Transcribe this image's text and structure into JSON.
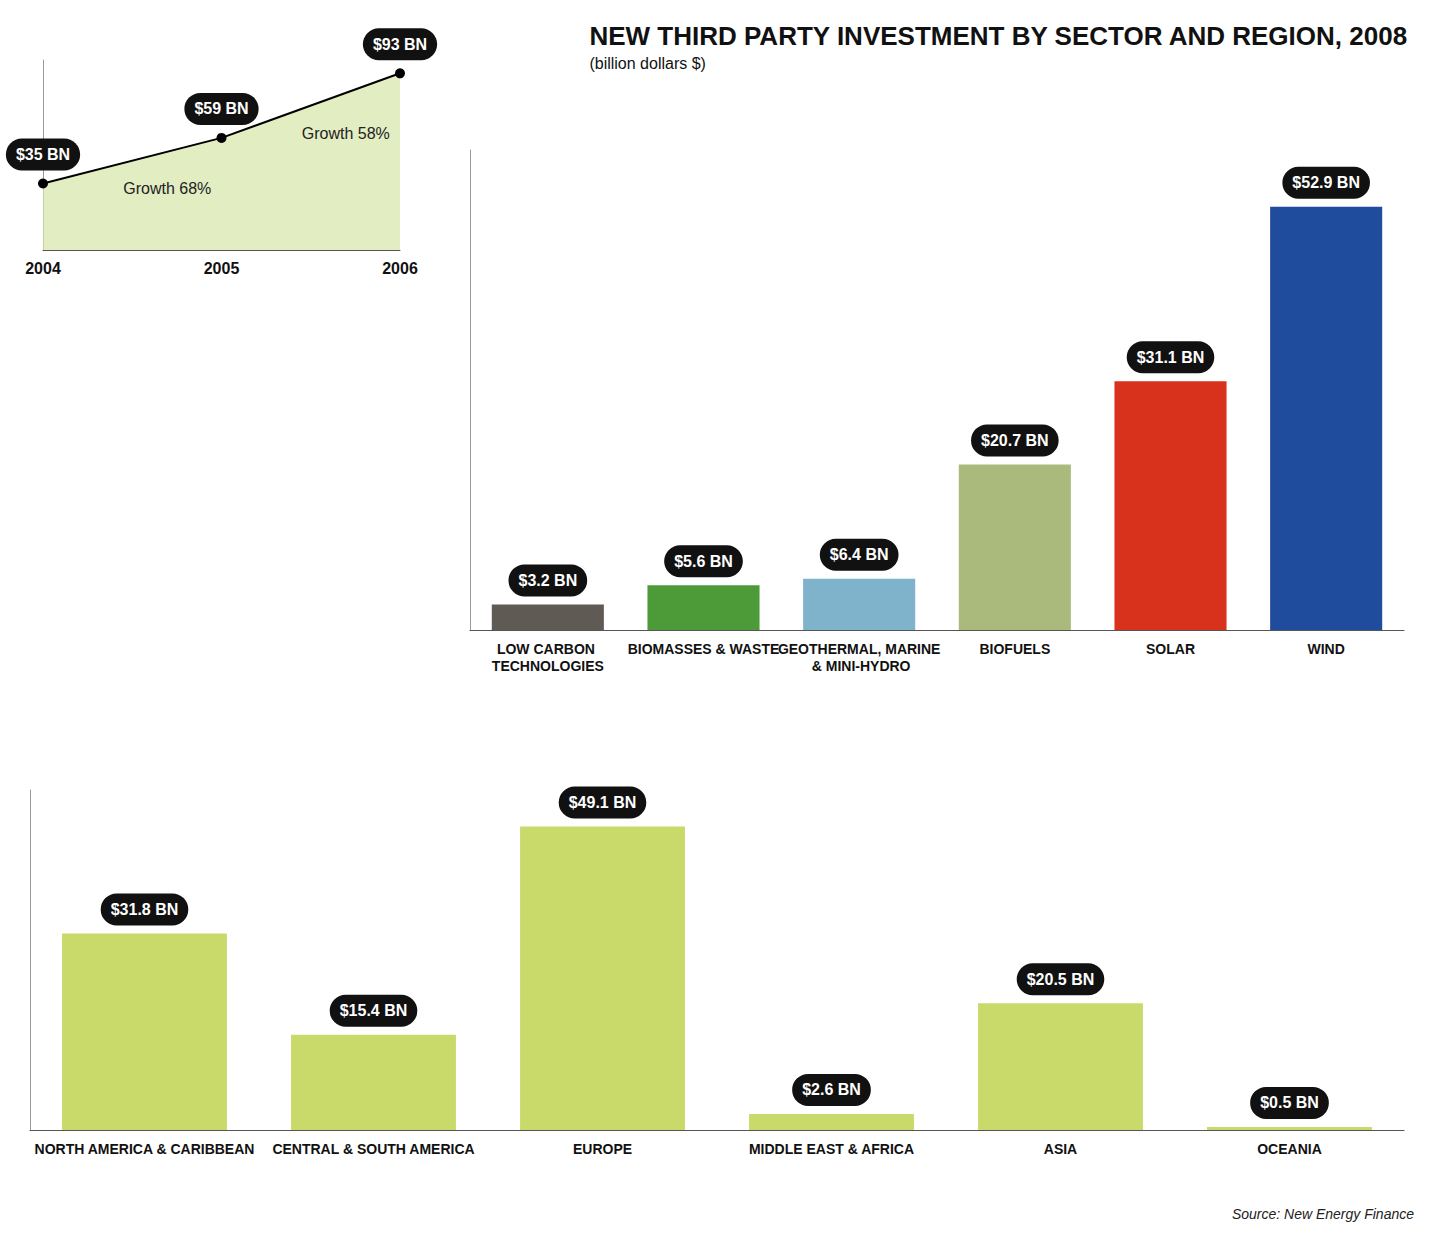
{
  "chart_data": [
    {
      "type": "line",
      "categories": [
        "2004",
        "2005",
        "2006"
      ],
      "values": [
        35,
        59,
        93
      ],
      "value_labels": [
        "$35 BN",
        "$59 BN",
        "$93 BN"
      ],
      "data_labels": true,
      "color": "#000000",
      "annotations": [
        "Growth 68%",
        "Growth 58%"
      ],
      "ylim": [
        0,
        100
      ],
      "tick_labels": "x",
      "grid": false
    },
    {
      "type": "bar",
      "title": "NEW THIRD PARTY INVESTMENT BY SECTOR AND REGION, 2008",
      "subtitle": "(billion dollars $)",
      "categories": [
        "LOW CARBON TECHNOLOGIES",
        "BIOMASSES & WASTE",
        "GEOTHERMAL, MARINE & MINI-HYDRO",
        "BIOFUELS",
        "SOLAR",
        "WIND"
      ],
      "values": [
        3.2,
        5.6,
        6.4,
        20.7,
        31.1,
        52.9
      ],
      "value_labels": [
        "$3.2 BN",
        "$5.6 BN",
        "$6.4 BN",
        "$20.7 BN",
        "$31.1 BN",
        "$52.9 BN"
      ],
      "colors": [
        "#5f5a54",
        "#4c9a38",
        "#7fb3cc",
        "#a9ba7c",
        "#d8321c",
        "#1f4c9c"
      ],
      "data_labels": true,
      "ylim": [
        0,
        60
      ],
      "tick_labels": "x",
      "grid": false
    },
    {
      "type": "bar",
      "categories": [
        "NORTH AMERICA & CARIBBEAN",
        "CENTRAL & SOUTH AMERICA",
        "EUROPE",
        "MIDDLE EAST & AFRICA",
        "ASIA",
        "OCEANIA"
      ],
      "values": [
        31.8,
        15.4,
        49.1,
        2.6,
        20.5,
        0.5
      ],
      "value_labels": [
        "$31.8 BN",
        "$15.4 BN",
        "$49.1 BN",
        "$2.6 BN",
        "$20.5 BN",
        "$0.5 BN"
      ],
      "color": "#c9da6b",
      "data_labels": true,
      "ylim": [
        0,
        55
      ],
      "tick_labels": "x",
      "grid": false,
      "source": "Source: New Energy Finance"
    }
  ]
}
